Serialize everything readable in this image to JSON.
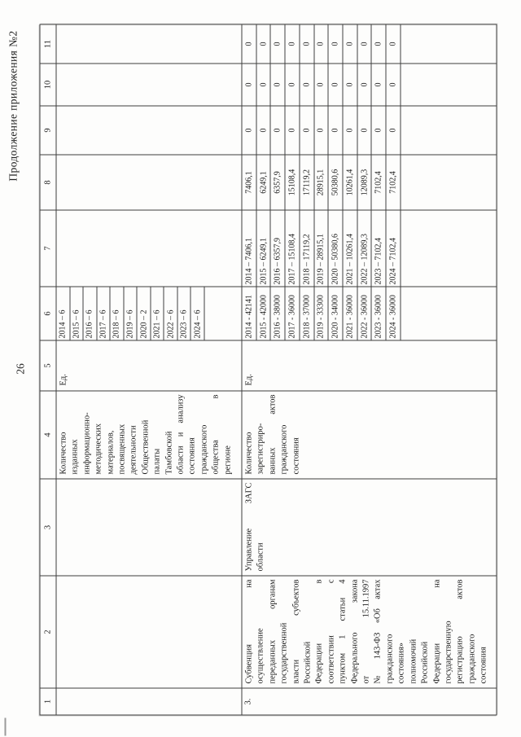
{
  "page": {
    "title": "Продолжение приложения №2",
    "number": "26"
  },
  "table": {
    "columns": [
      "1",
      "2",
      "3",
      "4",
      "5",
      "6",
      "7",
      "8",
      "9",
      "10",
      "11"
    ],
    "row_continuation": {
      "indicator_lines": [
        "Количество",
        "изданных",
        "информационно-",
        "методических",
        "материалов,",
        "посвященных",
        "деятельности",
        "Общественной",
        "палаты",
        "Тамбовской",
        "области и анализу",
        "состояния",
        "гражданского",
        "общества в",
        "регионе"
      ],
      "unit": "Ед.",
      "year_values": [
        "2014 – 6",
        "2015 – 6",
        "2016 – 6",
        "2017 – 6",
        "2018 – 6",
        "2019 – 6",
        "2020 – 2",
        "2021 – 6",
        "2022 – 6",
        "2023 – 6",
        "2024 – 6"
      ]
    },
    "row_3": {
      "number": "3.",
      "name_lines": [
        "Субвенция на",
        "осуществление",
        "переданных органам",
        "государственной",
        "власти субъектов",
        "Российской",
        "Федерации в",
        "соответствии с",
        "пунктом 1 статьи 4",
        "Федерального закона",
        "от 15.11.1997",
        "№ 143-ФЗ «Об актах",
        "гражданского",
        "состояния»",
        "полномочий",
        "Российской",
        "Федерации на",
        "государственную",
        "регистрацию актов",
        "гражданского",
        "состояния"
      ],
      "executor_lines": [
        "Управление ЗАГС",
        "области"
      ],
      "indicator_lines": [
        "Количество",
        "зарегистриро-",
        "ванных актов",
        "гражданского",
        "состояния"
      ],
      "unit": "Ед.",
      "year_targets": [
        "2014 - 42141",
        "2015 - 42000",
        "2016 - 38000",
        "2017 - 36000",
        "2018 - 37000",
        "2019 - 33300",
        "2020 - 34000",
        "2021 - 36000",
        "2022 - 36000",
        "2023 - 36000",
        "2024 - 36000"
      ],
      "financing_by_year": [
        "2014 – 7406,1",
        "2015 – 6249,1",
        "2016 – 6357,9",
        "2017 – 15108,4",
        "2018 – 17119,2",
        "2019 – 28915,1",
        "2020 – 50380,6",
        "2021 – 10261,4",
        "2022 – 12089,3",
        "2023 – 7102,4",
        "2024 – 7102,4"
      ],
      "amounts": [
        "7406,1",
        "6249,1",
        "6357,9",
        "15108,4",
        "17119,2",
        "28915,1",
        "50380,6",
        "10261,4",
        "12089,3",
        "7102,4",
        "7102,4"
      ],
      "col9_values": [
        "0",
        "0",
        "0",
        "0",
        "0",
        "0",
        "0",
        "0",
        "0",
        "0",
        "0"
      ],
      "col10_values": [
        "0",
        "0",
        "0",
        "0",
        "0",
        "0",
        "0",
        "0",
        "0",
        "0",
        "0"
      ],
      "col11_values": [
        "0",
        "0",
        "0",
        "0",
        "0",
        "0",
        "0",
        "0",
        "0",
        "0",
        "0"
      ]
    }
  }
}
